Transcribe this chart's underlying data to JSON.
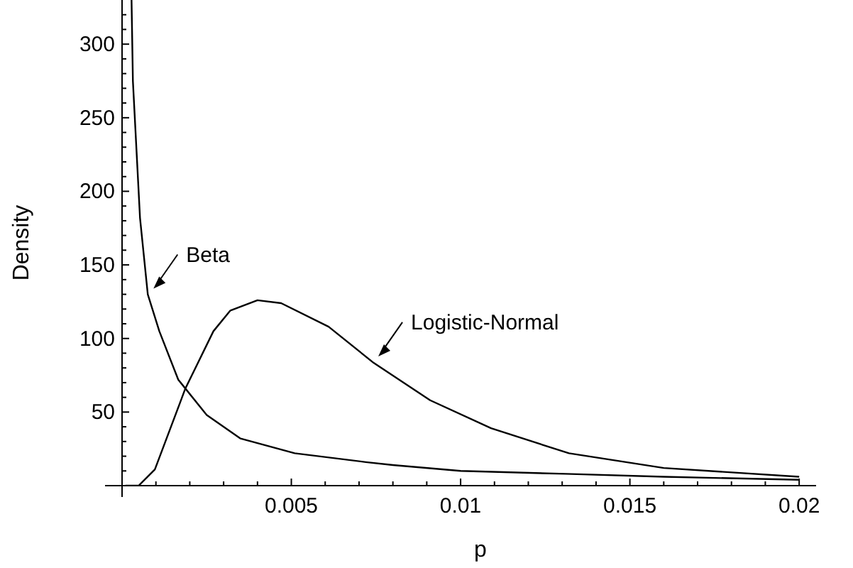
{
  "chart_data": {
    "type": "line",
    "xlabel": "p",
    "ylabel": "Density",
    "xlim": [
      0,
      0.0205
    ],
    "ylim": [
      0,
      330
    ],
    "xticks": [
      {
        "value": 0.001,
        "label": null
      },
      {
        "value": 0.002,
        "label": null
      },
      {
        "value": 0.003,
        "label": null
      },
      {
        "value": 0.004,
        "label": null
      },
      0.005,
      {
        "value": 0.006,
        "label": null
      },
      {
        "value": 0.007,
        "label": null
      },
      {
        "value": 0.008,
        "label": null
      },
      {
        "value": 0.009,
        "label": null
      },
      0.01,
      {
        "value": 0.011,
        "label": null
      },
      {
        "value": 0.012,
        "label": null
      },
      {
        "value": 0.013,
        "label": null
      },
      {
        "value": 0.014,
        "label": null
      },
      0.015,
      {
        "value": 0.016,
        "label": null
      },
      {
        "value": 0.017,
        "label": null
      },
      {
        "value": 0.018,
        "label": null
      },
      {
        "value": 0.019,
        "label": null
      },
      0.02
    ],
    "yticks": [
      {
        "value": 10,
        "label": null
      },
      {
        "value": 20,
        "label": null
      },
      {
        "value": 30,
        "label": null
      },
      {
        "value": 40,
        "label": null
      },
      50,
      {
        "value": 60,
        "label": null
      },
      {
        "value": 70,
        "label": null
      },
      {
        "value": 80,
        "label": null
      },
      {
        "value": 90,
        "label": null
      },
      100,
      {
        "value": 110,
        "label": null
      },
      {
        "value": 120,
        "label": null
      },
      {
        "value": 130,
        "label": null
      },
      {
        "value": 140,
        "label": null
      },
      150,
      {
        "value": 160,
        "label": null
      },
      {
        "value": 170,
        "label": null
      },
      {
        "value": 180,
        "label": null
      },
      {
        "value": 190,
        "label": null
      },
      200,
      {
        "value": 210,
        "label": null
      },
      {
        "value": 220,
        "label": null
      },
      {
        "value": 230,
        "label": null
      },
      {
        "value": 240,
        "label": null
      },
      250,
      {
        "value": 260,
        "label": null
      },
      {
        "value": 270,
        "label": null
      },
      {
        "value": 280,
        "label": null
      },
      {
        "value": 290,
        "label": null
      },
      300,
      {
        "value": 310,
        "label": null
      },
      {
        "value": 320,
        "label": null
      }
    ],
    "grid": false,
    "legend": "left",
    "marker": "none",
    "line_style": "solid",
    "series": [
      {
        "name": "Beta",
        "color": "#000000",
        "x": [
          0.00028,
          0.00032,
          0.00053,
          0.00076,
          0.0011,
          0.00166,
          0.0025,
          0.0035,
          0.0051,
          0.0072,
          0.008,
          0.01,
          0.0131,
          0.016,
          0.02
        ],
        "values": [
          330,
          275,
          182,
          130,
          105,
          72,
          48,
          32,
          22,
          16,
          14,
          10,
          8,
          6,
          4
        ]
      },
      {
        "name": "Logistic-Normal",
        "color": "#000000",
        "x": [
          0.0001,
          0.00049,
          0.00097,
          0.00187,
          0.0027,
          0.0032,
          0.004,
          0.0047,
          0.0061,
          0.0074,
          0.0091,
          0.0109,
          0.0132,
          0.016,
          0.02
        ],
        "values": [
          0,
          0,
          11,
          66,
          105,
          119,
          126,
          124,
          108,
          84,
          58,
          39,
          22,
          12,
          6
        ]
      }
    ]
  }
}
